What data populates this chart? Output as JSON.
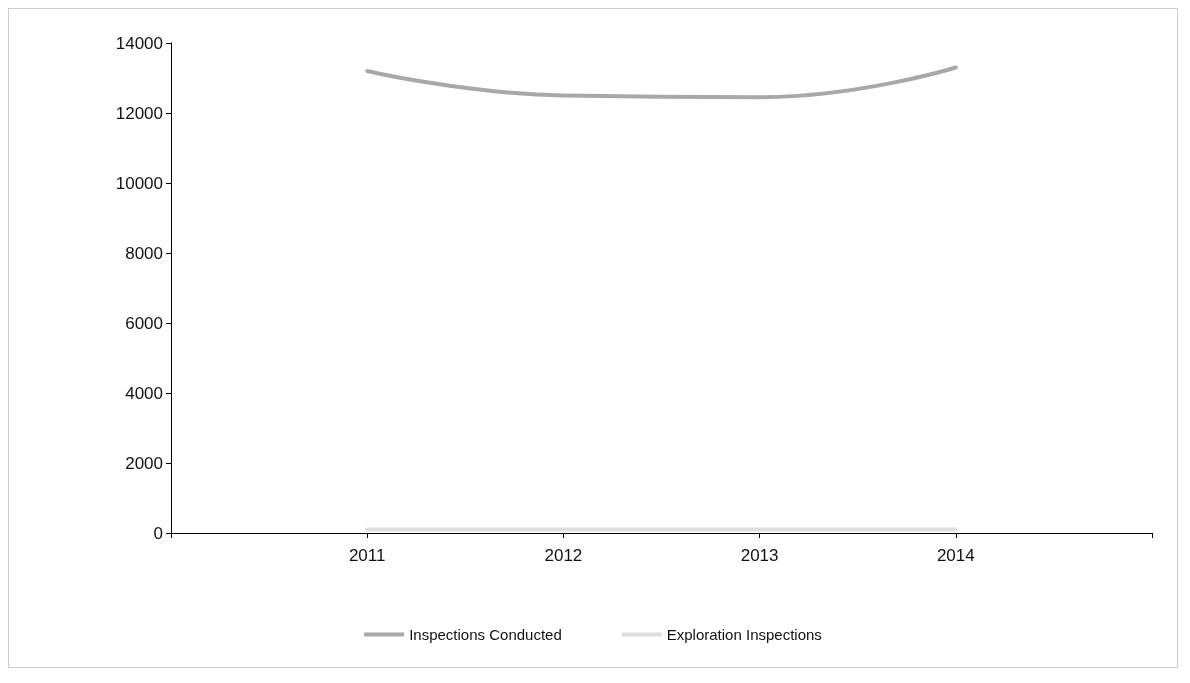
{
  "chart_data": {
    "type": "line",
    "x": [
      2011,
      2012,
      2013,
      2014
    ],
    "series": [
      {
        "name": "Inspections Conducted",
        "color": "#a8a8a8",
        "values": [
          13200,
          12500,
          12450,
          13300
        ]
      },
      {
        "name": "Exploration Inspections",
        "color": "#dedede",
        "values": [
          100,
          100,
          100,
          100
        ]
      }
    ],
    "xlim": [
      2010,
      2015
    ],
    "xticks": [
      {
        "value": 2010,
        "label": null
      },
      2011,
      2012,
      2013,
      2014,
      {
        "value": 2015,
        "label": null
      }
    ],
    "ylim": [
      0,
      14000
    ],
    "yticks": [
      0,
      2000,
      4000,
      6000,
      8000,
      10000,
      12000,
      14000
    ],
    "grid": false,
    "legend": "bottom",
    "marker": "none",
    "line_style": "solid"
  }
}
